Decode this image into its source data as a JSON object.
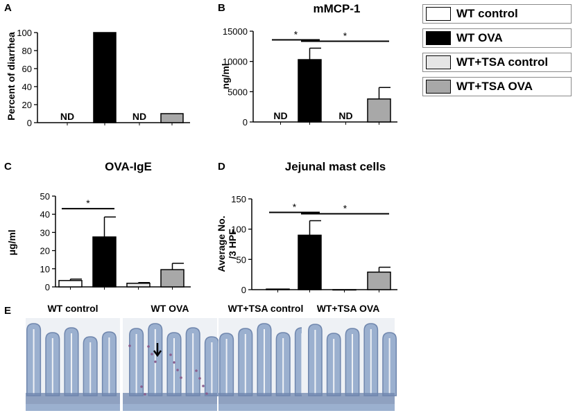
{
  "colors": {
    "wt_control": "#ffffff",
    "wt_ova": "#000000",
    "tsa_control": "#e6e6e6",
    "tsa_ova": "#a8a8a8",
    "tissue_bg": "#eef1f5",
    "tissue_blue": "#9bb0cf",
    "tissue_dark": "#6f86ad",
    "tissue_purple": "#8a5f8e"
  },
  "legend": [
    {
      "label": "WT control",
      "color": "#ffffff"
    },
    {
      "label": "WT OVA",
      "color": "#000000"
    },
    {
      "label": "WT+TSA control",
      "color": "#e6e6e6"
    },
    {
      "label": "WT+TSA OVA",
      "color": "#a8a8a8"
    }
  ],
  "chart_data": [
    {
      "panel": "A",
      "type": "bar",
      "title": "",
      "ylabel": "Percent of diarrhea",
      "categories": [
        "WT control",
        "WT OVA",
        "WT+TSA control",
        "WT+TSA OVA"
      ],
      "values": [
        null,
        100,
        null,
        10
      ],
      "errors": [
        0,
        0,
        0,
        0
      ],
      "annotations": [
        "ND",
        "",
        "ND",
        ""
      ],
      "ylim": [
        0,
        100
      ],
      "yticks": [
        0,
        20,
        40,
        60,
        80,
        100
      ],
      "significance": []
    },
    {
      "panel": "B",
      "type": "bar",
      "title": "mMCP-1",
      "ylabel": "ng/ml",
      "categories": [
        "WT control",
        "WT OVA",
        "WT+TSA control",
        "WT+TSA OVA"
      ],
      "values": [
        null,
        10300,
        null,
        3800
      ],
      "errors": [
        0,
        1900,
        0,
        1900
      ],
      "annotations": [
        "ND",
        "",
        "ND",
        ""
      ],
      "ylim": [
        0,
        15000
      ],
      "yticks": [
        0,
        5000,
        10000,
        15000
      ],
      "significance": [
        {
          "from": 0,
          "to": 1,
          "label": "*"
        },
        {
          "from": 1,
          "to": 3,
          "label": "*"
        }
      ]
    },
    {
      "panel": "C",
      "type": "bar",
      "title": "OVA-IgE",
      "ylabel": "μg/ml",
      "categories": [
        "WT control",
        "WT OVA",
        "WT+TSA control",
        "WT+TSA OVA"
      ],
      "values": [
        3.5,
        27.5,
        2,
        9.5
      ],
      "errors": [
        0.8,
        11,
        0.4,
        3.5
      ],
      "annotations": [
        "",
        "",
        "",
        ""
      ],
      "ylim": [
        0,
        50
      ],
      "yticks": [
        0,
        10,
        20,
        30,
        40,
        50
      ],
      "significance": [
        {
          "from": 0,
          "to": 1,
          "label": "*"
        }
      ]
    },
    {
      "panel": "D",
      "type": "bar",
      "title": "Jejunal mast cells",
      "ylabel": "Average No.\n/3 HPF",
      "categories": [
        "WT control",
        "WT OVA",
        "WT+TSA control",
        "WT+TSA OVA"
      ],
      "values": [
        1,
        90,
        0,
        29
      ],
      "errors": [
        0,
        24,
        0,
        8
      ],
      "annotations": [
        "",
        "",
        "",
        ""
      ],
      "ylim": [
        0,
        150
      ],
      "yticks": [
        0,
        50,
        100,
        150
      ],
      "significance": [
        {
          "from": 0,
          "to": 1,
          "label": "*"
        },
        {
          "from": 1,
          "to": 3,
          "label": "*"
        }
      ]
    }
  ],
  "micrographs": {
    "label": "E",
    "panels": [
      {
        "title": "WT control",
        "arrow": false,
        "purple": false
      },
      {
        "title": "WT OVA",
        "arrow": true,
        "purple": true
      },
      {
        "title": "WT+TSA control",
        "arrow": false,
        "purple": false
      },
      {
        "title": "WT+TSA OVA",
        "arrow": false,
        "purple": false
      }
    ]
  }
}
